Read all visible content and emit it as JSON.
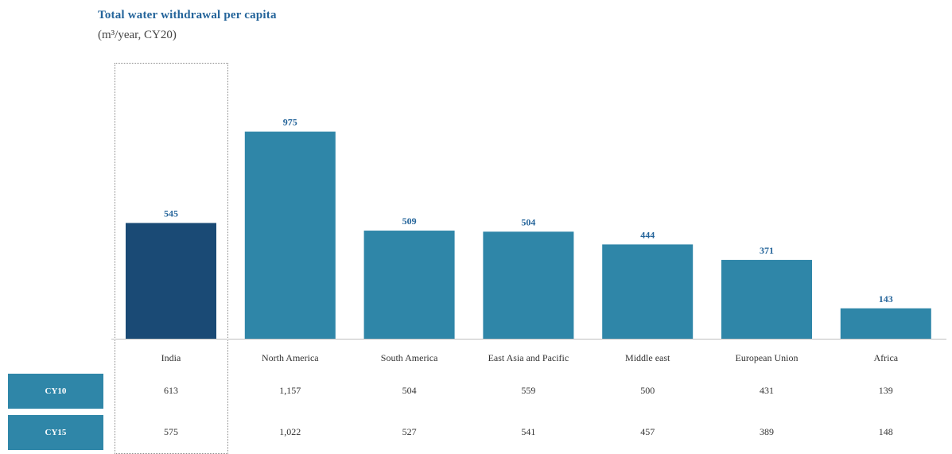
{
  "title": "Total water withdrawal per capita",
  "subtitle": "(m³/year, CY20)",
  "colors": {
    "highlight": "#1a4a75",
    "bar": "#2f86a8",
    "baseline": "#bfbfbf",
    "label": "#24649a"
  },
  "chart_data": {
    "type": "bar",
    "title": "Total water withdrawal per capita",
    "subtitle": "(m³/year, CY20)",
    "categories": [
      "India",
      "North America",
      "South America",
      "East Asia and Pacific",
      "Middle east",
      "European Union",
      "Africa"
    ],
    "values": [
      545,
      975,
      509,
      504,
      444,
      371,
      143
    ],
    "highlighted_category": "India",
    "table_rows": [
      {
        "label": "CY10",
        "values": [
          "613",
          "1,157",
          "504",
          "559",
          "500",
          "431",
          "139"
        ]
      },
      {
        "label": "CY15",
        "values": [
          "575",
          "1,022",
          "527",
          "541",
          "457",
          "389",
          "148"
        ]
      }
    ]
  }
}
